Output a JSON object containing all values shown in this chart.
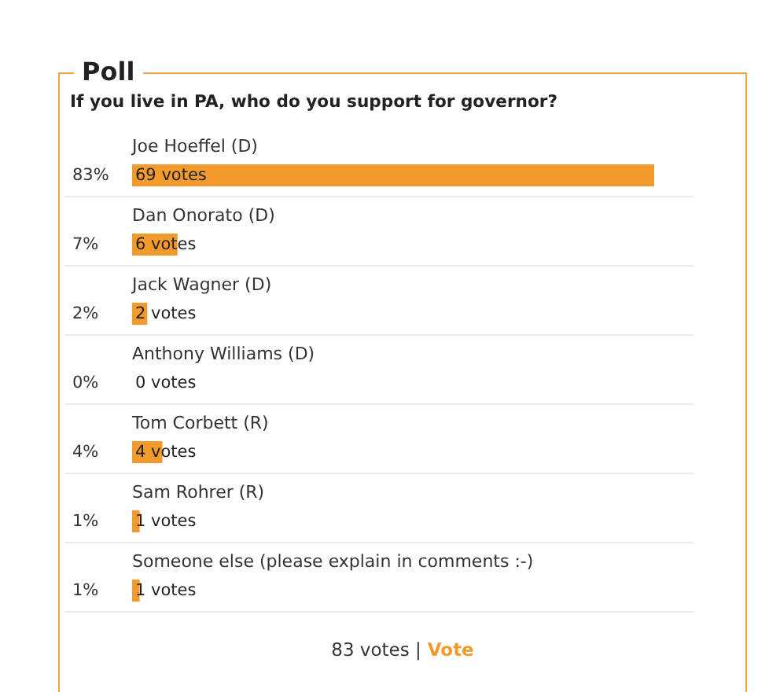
{
  "chart_data": {
    "type": "bar",
    "orientation": "horizontal",
    "title": "Poll",
    "subtitle": "If you live in PA, who do you support for governor?",
    "categories": [
      "Joe Hoeffel (D)",
      "Dan Onorato (D)",
      "Jack Wagner (D)",
      "Anthony Williams (D)",
      "Tom Corbett (R)",
      "Sam Rohrer (R)",
      "Someone else (please explain in comments :-)"
    ],
    "values": [
      69,
      6,
      2,
      0,
      4,
      1,
      1
    ],
    "value_labels": [
      "69 votes",
      "6 votes",
      "2 votes",
      "0 votes",
      "4 votes",
      "1 votes",
      "1 votes"
    ],
    "color": "#f29a2e",
    "grid": "y",
    "annotations": [
      "83%",
      "7%",
      "2%",
      "0%",
      "4%",
      "1%",
      "1%",
      "83 votes |",
      "Vote"
    ]
  }
}
